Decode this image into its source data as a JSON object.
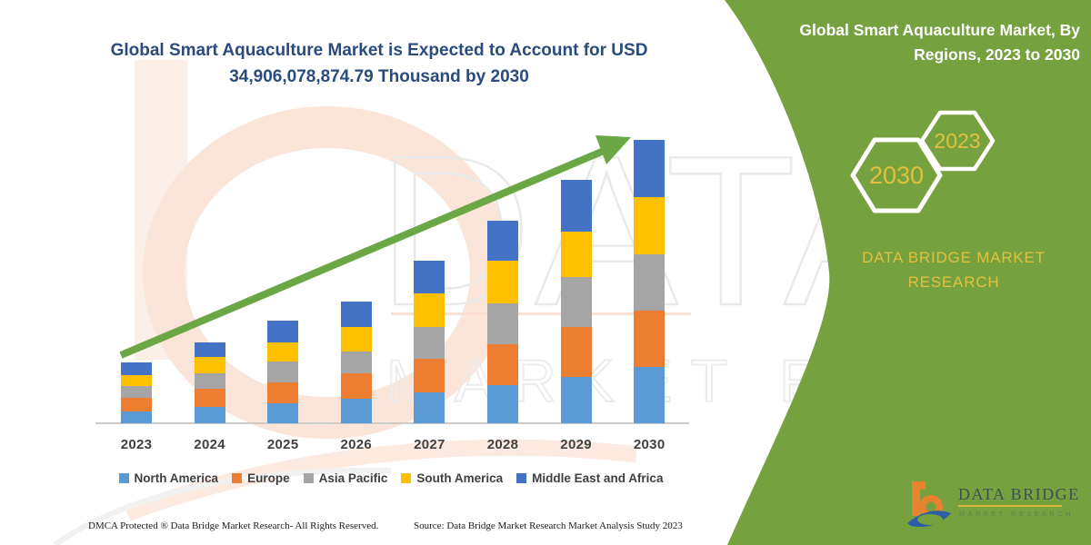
{
  "title": {
    "text": "Global Smart Aquaculture Market is Expected to Account for USD 34,906,078,874.79 Thousand by 2030",
    "color": "#2A4B7E"
  },
  "right_panel": {
    "heading": "Global Smart Aquaculture Market, By Regions, 2023 to 2030",
    "brand": "DATA BRIDGE MARKET RESEARCH",
    "hexagon_large_label": "2030",
    "hexagon_small_label": "2023",
    "bg_color": "#75A13E",
    "accent_text_color": "#E0C13F"
  },
  "chart_data": {
    "type": "bar",
    "stacked": true,
    "title": "Global Smart Aquaculture Market is Expected to Account for USD 34,906,078,874.79 Thousand by 2030",
    "xlabel": "",
    "ylabel": "",
    "categories": [
      "2023",
      "2024",
      "2025",
      "2026",
      "2027",
      "2028",
      "2029",
      "2030"
    ],
    "series": [
      {
        "name": "North America",
        "color": "#5B9BD5",
        "values": [
          13,
          18,
          22,
          27,
          34,
          42,
          51,
          62
        ]
      },
      {
        "name": "Europe",
        "color": "#ED7D31",
        "values": [
          15,
          20,
          23,
          28,
          37,
          45,
          55,
          62
        ]
      },
      {
        "name": "Asia Pacific",
        "color": "#A5A5A5",
        "values": [
          13,
          17,
          23,
          24,
          35,
          45,
          55,
          62
        ]
      },
      {
        "name": "South America",
        "color": "#FFC000",
        "values": [
          12,
          18,
          21,
          27,
          37,
          47,
          50,
          63
        ]
      },
      {
        "name": "Middle East and Africa",
        "color": "#4472C4",
        "values": [
          14,
          16,
          24,
          28,
          36,
          44,
          57,
          63
        ]
      }
    ],
    "stack_totals": [
      67,
      89,
      113,
      134,
      179,
      223,
      268,
      312
    ],
    "units": "relative height units (no y-axis shown); 2030 total corresponds to USD 34,906,078,874.79 Thousand",
    "ylim": [
      0,
      320
    ],
    "grid": false,
    "y_axis_visible": false,
    "legend_position": "bottom",
    "annotations": [
      "upward green trend arrow from 2023 to 2030"
    ]
  },
  "watermark": {
    "text1": "DATA BRIDGE",
    "text2": "MARKET RESEARCH"
  },
  "footer": {
    "left": "DMCA Protected ® Data Bridge Market Research-  All Rights Reserved.",
    "right": "Source: Data Bridge Market Research  Market Analysis Study 2023"
  },
  "logo": {
    "wordmark": "DATA BRIDGE",
    "subtitle": "MARKET RESEARCH"
  },
  "arrow_color": "#6BA744"
}
